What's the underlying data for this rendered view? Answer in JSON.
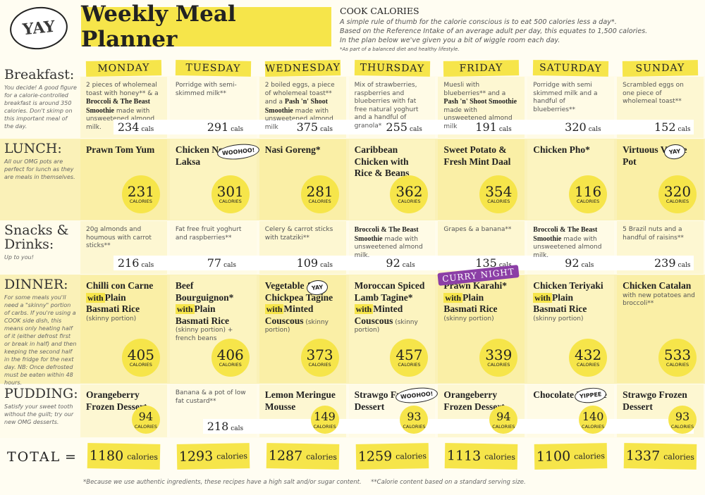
{
  "header": {
    "badge": "YAY",
    "title": "Weekly Meal Planner"
  },
  "intro": {
    "heading": "COOK CALORIES",
    "lines": [
      "A simple rule of thumb for the calorie conscious is to eat 500 calories less a day*.",
      "Based on the Reference Intake of an average adult per day, this equates to 1,500 calories.",
      "In the plan below we've given you a bit of wiggle room each day."
    ],
    "note": "*As part of a balanced diet and healthy lifestyle."
  },
  "days": [
    "MONDAY",
    "TUESDAY",
    "WEDNESDAY",
    "THURSDAY",
    "FRIDAY",
    "SATURDAY",
    "SUNDAY"
  ],
  "rows": [
    {
      "label": "Breakfast:",
      "note": "You decide! A good figure for a calorie-controlled breakfast is around 350 calories. Don't skimp on this important meal of the day.",
      "cells": [
        {
          "parts": [
            {
              "text": "2 pieces of wholemeal toast with honey** & a ",
              "style": "p"
            },
            {
              "text": "Broccoli & The Beast Smoothie",
              "style": "b"
            },
            {
              "text": " made with unsweetened almond milk.",
              "style": "p"
            }
          ],
          "cals": 234,
          "unit": "cals",
          "circle": false
        },
        {
          "parts": [
            {
              "text": "Porridge with semi-skimmed milk**",
              "style": "p"
            }
          ],
          "cals": 291,
          "unit": "cals",
          "circle": false
        },
        {
          "parts": [
            {
              "text": "2 boiled eggs, a piece of wholemeal toast** and a ",
              "style": "p"
            },
            {
              "text": "Pash 'n' Shoot Smoothie",
              "style": "b"
            },
            {
              "text": " made with unsweetened almond milk",
              "style": "p"
            }
          ],
          "cals": 375,
          "unit": "cals",
          "circle": false
        },
        {
          "parts": [
            {
              "text": "Mix of strawberries, raspberries and blueberries with fat free natural yoghurt and a handful of granola**",
              "style": "p"
            }
          ],
          "cals": 255,
          "unit": "cals",
          "circle": false
        },
        {
          "parts": [
            {
              "text": "Muesli with blueberries** and a ",
              "style": "p"
            },
            {
              "text": "Pash 'n' Shoot Smoothie",
              "style": "b"
            },
            {
              "text": " made with unsweetened almond milk",
              "style": "p"
            }
          ],
          "cals": 191,
          "unit": "cals",
          "circle": false
        },
        {
          "parts": [
            {
              "text": "Porridge with semi skimmed milk and a handful of blueberries**",
              "style": "p"
            }
          ],
          "cals": 320,
          "unit": "cals",
          "circle": false
        },
        {
          "parts": [
            {
              "text": "Scrambled eggs on one piece of wholemeal toast**",
              "style": "p"
            }
          ],
          "cals": 152,
          "unit": "cals",
          "circle": false
        }
      ]
    },
    {
      "label": "LUNCH:",
      "note": "All our OMG pots are perfect for lunch as they are meals in themselves.",
      "cells": [
        {
          "parts": [
            {
              "text": "Prawn Tom Yum",
              "style": "b"
            }
          ],
          "cals": 231,
          "unit": "CALORIES",
          "circle": true
        },
        {
          "parts": [
            {
              "text": "Chicken Noodle Laksa",
              "style": "b"
            }
          ],
          "cals": 301,
          "unit": "CALORIES",
          "circle": true,
          "sticker": "WOOHOO!"
        },
        {
          "parts": [
            {
              "text": "Nasi Goreng*",
              "style": "b"
            }
          ],
          "cals": 281,
          "unit": "CALORIES",
          "circle": true
        },
        {
          "parts": [
            {
              "text": "Caribbean Chicken with Rice & Beans",
              "style": "b"
            }
          ],
          "cals": 362,
          "unit": "CALORIES",
          "circle": true
        },
        {
          "parts": [
            {
              "text": "Sweet Potato & Fresh Mint Daal",
              "style": "b"
            }
          ],
          "cals": 354,
          "unit": "CALORIES",
          "circle": true
        },
        {
          "parts": [
            {
              "text": "Chicken Pho*",
              "style": "b"
            }
          ],
          "cals": 116,
          "unit": "CALORIES",
          "circle": true
        },
        {
          "parts": [
            {
              "text": "Virtuous Veggie Pot",
              "style": "b"
            }
          ],
          "cals": 320,
          "unit": "CALORIES",
          "circle": true,
          "sticker": "YAY"
        }
      ]
    },
    {
      "label": "Snacks & Drinks:",
      "note": "Up to you!",
      "cells": [
        {
          "parts": [
            {
              "text": "20g almonds and houmous with carrot sticks**",
              "style": "p"
            }
          ],
          "cals": 216,
          "unit": "cals",
          "circle": false
        },
        {
          "parts": [
            {
              "text": "Fat free fruit yoghurt and raspberries**",
              "style": "p"
            }
          ],
          "cals": 77,
          "unit": "cals",
          "circle": false
        },
        {
          "parts": [
            {
              "text": "Celery & carrot sticks with tzatziki**",
              "style": "p"
            }
          ],
          "cals": 109,
          "unit": "cals",
          "circle": false
        },
        {
          "parts": [
            {
              "text": "Broccoli & The Beast Smoothie",
              "style": "b"
            },
            {
              "text": " made with unsweetened almond milk.",
              "style": "p"
            }
          ],
          "cals": 92,
          "unit": "cals",
          "circle": false
        },
        {
          "parts": [
            {
              "text": "Grapes & a banana**",
              "style": "p"
            }
          ],
          "cals": 135,
          "unit": "cals",
          "circle": false
        },
        {
          "parts": [
            {
              "text": "Broccoli & The Beast Smoothie",
              "style": "b"
            },
            {
              "text": " made with unsweetened almond milk.",
              "style": "p"
            }
          ],
          "cals": 92,
          "unit": "cals",
          "circle": false
        },
        {
          "parts": [
            {
              "text": "5 Brazil nuts and a handful of raisins**",
              "style": "p"
            }
          ],
          "cals": 239,
          "unit": "cals",
          "circle": false
        }
      ]
    },
    {
      "label": "DINNER:",
      "note": "For some meals you'll need a \"skinny\" portion of carbs. If you're using a COOK side dish, this means only heating half of it (either defrost first or break in half) and then keeping the second half in the fridge for the next day. NB: Once defrosted must be eaten within 48 hours.",
      "cells": [
        {
          "parts": [
            {
              "text": "Chilli con Carne",
              "style": "b"
            },
            {
              "text": "with",
              "style": "w"
            },
            {
              "text": "Plain Basmati Rice",
              "style": "b"
            },
            {
              "text": " (skinny portion)",
              "style": "p"
            }
          ],
          "cals": 405,
          "unit": "CALORIES",
          "circle": true
        },
        {
          "parts": [
            {
              "text": "Beef Bourguignon*",
              "style": "b"
            },
            {
              "text": "with",
              "style": "w"
            },
            {
              "text": "Plain Basmati Rice",
              "style": "b"
            },
            {
              "text": " (skinny portion) + french beans",
              "style": "p"
            }
          ],
          "cals": 406,
          "unit": "CALORIES",
          "circle": true
        },
        {
          "parts": [
            {
              "text": "Vegetable & Chickpea Tagine",
              "style": "b"
            },
            {
              "text": "with",
              "style": "w"
            },
            {
              "text": "Minted Couscous",
              "style": "b"
            },
            {
              "text": " (skinny portion)",
              "style": "p"
            }
          ],
          "cals": 373,
          "unit": "CALORIES",
          "circle": true,
          "sticker": "YAY"
        },
        {
          "parts": [
            {
              "text": "Moroccan Spiced Lamb Tagine*",
              "style": "b"
            },
            {
              "text": "with",
              "style": "w"
            },
            {
              "text": "Minted Couscous",
              "style": "b"
            },
            {
              "text": " (skinny portion)",
              "style": "p"
            }
          ],
          "cals": 457,
          "unit": "CALORIES",
          "circle": true
        },
        {
          "parts": [
            {
              "text": "Prawn Karahi*",
              "style": "b"
            },
            {
              "text": "with",
              "style": "w"
            },
            {
              "text": "Plain Basmati Rice",
              "style": "b"
            },
            {
              "text": " (skinny portion)",
              "style": "p"
            }
          ],
          "cals": 339,
          "unit": "CALORIES",
          "circle": true,
          "sticker": "CURRY NIGHT"
        },
        {
          "parts": [
            {
              "text": "Chicken Teriyaki",
              "style": "b"
            },
            {
              "text": "with",
              "style": "w"
            },
            {
              "text": "Plain Basmati Rice",
              "style": "b"
            },
            {
              "text": " (skinny portion)",
              "style": "p"
            }
          ],
          "cals": 432,
          "unit": "CALORIES",
          "circle": true
        },
        {
          "parts": [
            {
              "text": "Chicken Catalan",
              "style": "b"
            },
            {
              "text": " with new potatoes and broccoli**",
              "style": "p"
            }
          ],
          "cals": 533,
          "unit": "CALORIES",
          "circle": true
        }
      ]
    },
    {
      "label": "PUDDING:",
      "note": "Satisfy your sweet tooth without the guilt; try our new OMG desserts.",
      "cells": [
        {
          "parts": [
            {
              "text": "Orangeberry Frozen Dessert",
              "style": "b"
            }
          ],
          "cals": 94,
          "unit": "CALORIES",
          "circle": true
        },
        {
          "parts": [
            {
              "text": "Banana & a pot of low fat custard**",
              "style": "p"
            }
          ],
          "cals": 218,
          "unit": "cals",
          "circle": false
        },
        {
          "parts": [
            {
              "text": "Lemon Meringue Mousse",
              "style": "b"
            }
          ],
          "cals": 149,
          "unit": "CALORIES",
          "circle": true
        },
        {
          "parts": [
            {
              "text": "Strawgo Frozen Dessert",
              "style": "b"
            }
          ],
          "cals": 93,
          "unit": "CALORIES",
          "circle": true,
          "sticker": "WOOHOO!"
        },
        {
          "parts": [
            {
              "text": "Orangeberry Frozen Dessert",
              "style": "b"
            }
          ],
          "cals": 94,
          "unit": "CALORIES",
          "circle": true
        },
        {
          "parts": [
            {
              "text": "Chocolate Mousse",
              "style": "b"
            }
          ],
          "cals": 140,
          "unit": "CALORIES",
          "circle": true,
          "sticker": "YIPPEE"
        },
        {
          "parts": [
            {
              "text": "Strawgo Frozen Dessert",
              "style": "b"
            }
          ],
          "cals": 93,
          "unit": "CALORIES",
          "circle": true
        }
      ]
    }
  ],
  "total": {
    "label": "TOTAL",
    "eq": "=",
    "values": [
      1180,
      1293,
      1287,
      1259,
      1113,
      1100,
      1337
    ],
    "unit": "calories"
  },
  "footer": [
    "*Because we use authentic ingredients, these recipes have a high salt and/or sugar content.",
    "**Calorie content based on a standard serving size."
  ]
}
